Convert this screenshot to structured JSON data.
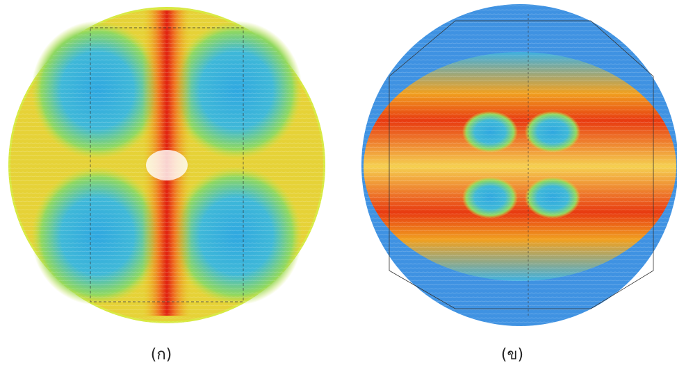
{
  "figure": {
    "panels": [
      {
        "label": "(ก)"
      },
      {
        "label": "(ข)"
      }
    ]
  }
}
